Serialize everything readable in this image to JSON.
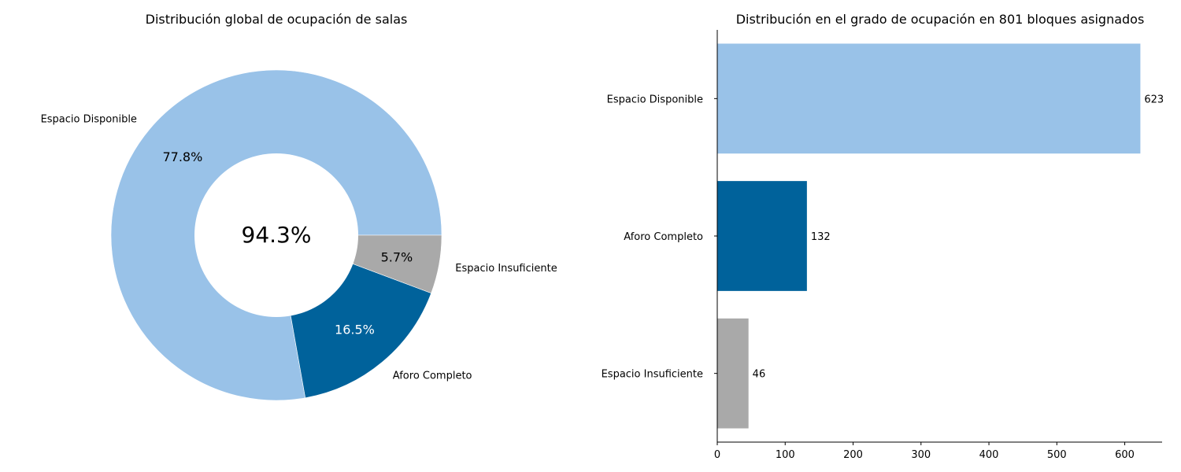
{
  "chart_data": [
    {
      "type": "pie",
      "variant": "donut",
      "title": "Distribución global de ocupación de salas",
      "center_label": "94.3%",
      "slices": [
        {
          "label": "Espacio Disponible",
          "percent": 77.8,
          "percent_label": "77.8%",
          "color": "#99c2e8",
          "percent_color": "#000000"
        },
        {
          "label": "Aforo Completo",
          "percent": 16.5,
          "percent_label": "16.5%",
          "color": "#00629b",
          "percent_color": "#ffffff"
        },
        {
          "label": "Espacio Insuficiente",
          "percent": 5.7,
          "percent_label": "5.7%",
          "color": "#a9a9a9",
          "percent_color": "#000000"
        }
      ]
    },
    {
      "type": "bar",
      "orientation": "horizontal",
      "title": "Distribución en el grado de ocupación en 801 bloques asignados",
      "categories": [
        "Espacio Disponible",
        "Aforo Completo",
        "Espacio Insuficiente"
      ],
      "values": [
        623,
        132,
        46
      ],
      "value_labels": [
        "623",
        "132",
        "46"
      ],
      "colors": [
        "#99c2e8",
        "#00629b",
        "#a9a9a9"
      ],
      "xlim": [
        0,
        655
      ],
      "xticks": [
        0,
        100,
        200,
        300,
        400,
        500,
        600
      ],
      "xtick_labels": [
        "0",
        "100",
        "200",
        "300",
        "400",
        "500",
        "600"
      ]
    }
  ]
}
